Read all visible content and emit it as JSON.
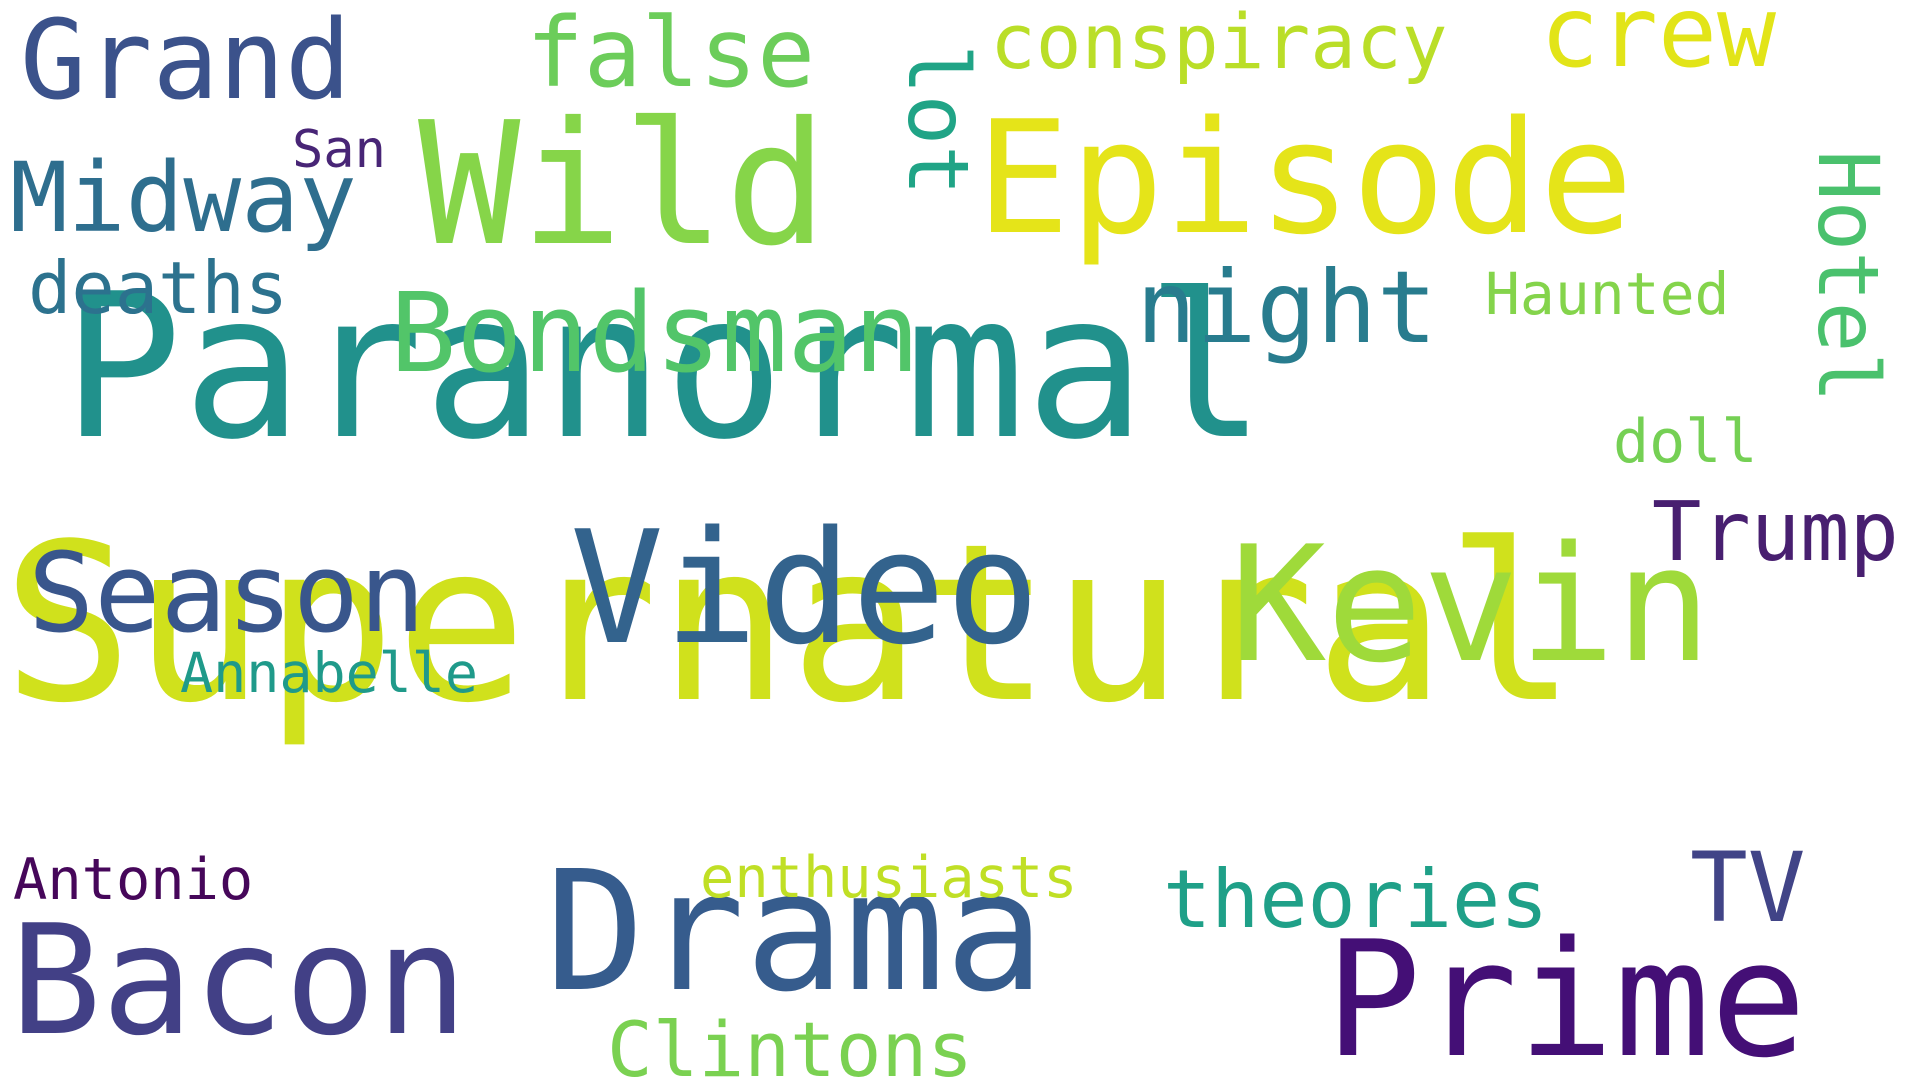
{
  "cloud": {
    "words": [
      {
        "text": "Paranormal",
        "color": "#21918c"
      },
      {
        "text": "Supernatural",
        "color": "#d0e11c"
      },
      {
        "text": "Episode",
        "color": "#e5e419"
      },
      {
        "text": "Wild",
        "color": "#86d549"
      },
      {
        "text": "Video",
        "color": "#33638d"
      },
      {
        "text": "Kevin",
        "color": "#9fda3a"
      },
      {
        "text": "Drama",
        "color": "#365c8d"
      },
      {
        "text": "Prime",
        "color": "#440f76"
      },
      {
        "text": "Bacon",
        "color": "#424086"
      },
      {
        "text": "Bondsman",
        "color": "#52c569"
      },
      {
        "text": "Grand",
        "color": "#3b528b"
      },
      {
        "text": "Season",
        "color": "#39568c"
      },
      {
        "text": "Midway",
        "color": "#2e6e8e"
      },
      {
        "text": "night",
        "color": "#287c8e"
      },
      {
        "text": "Hotel",
        "color": "#4ac16d"
      },
      {
        "text": "false",
        "color": "#6ccd5a"
      },
      {
        "text": "lot",
        "color": "#20a486"
      },
      {
        "text": "conspiracy",
        "color": "#bade28"
      },
      {
        "text": "crew",
        "color": "#e2e418"
      },
      {
        "text": "deaths",
        "color": "#2c728e"
      },
      {
        "text": "TV",
        "color": "#414487"
      },
      {
        "text": "theories",
        "color": "#1fa088"
      },
      {
        "text": "Trump",
        "color": "#481f70"
      },
      {
        "text": "Clintons",
        "color": "#7ad151"
      },
      {
        "text": "Haunted",
        "color": "#84d44b"
      },
      {
        "text": "doll",
        "color": "#75d054"
      },
      {
        "text": "Annabelle",
        "color": "#1f9a8a"
      },
      {
        "text": "enthusiasts",
        "color": "#c0df25"
      },
      {
        "text": "Antonio",
        "color": "#46075a"
      },
      {
        "text": "San",
        "color": "#482576"
      }
    ]
  }
}
